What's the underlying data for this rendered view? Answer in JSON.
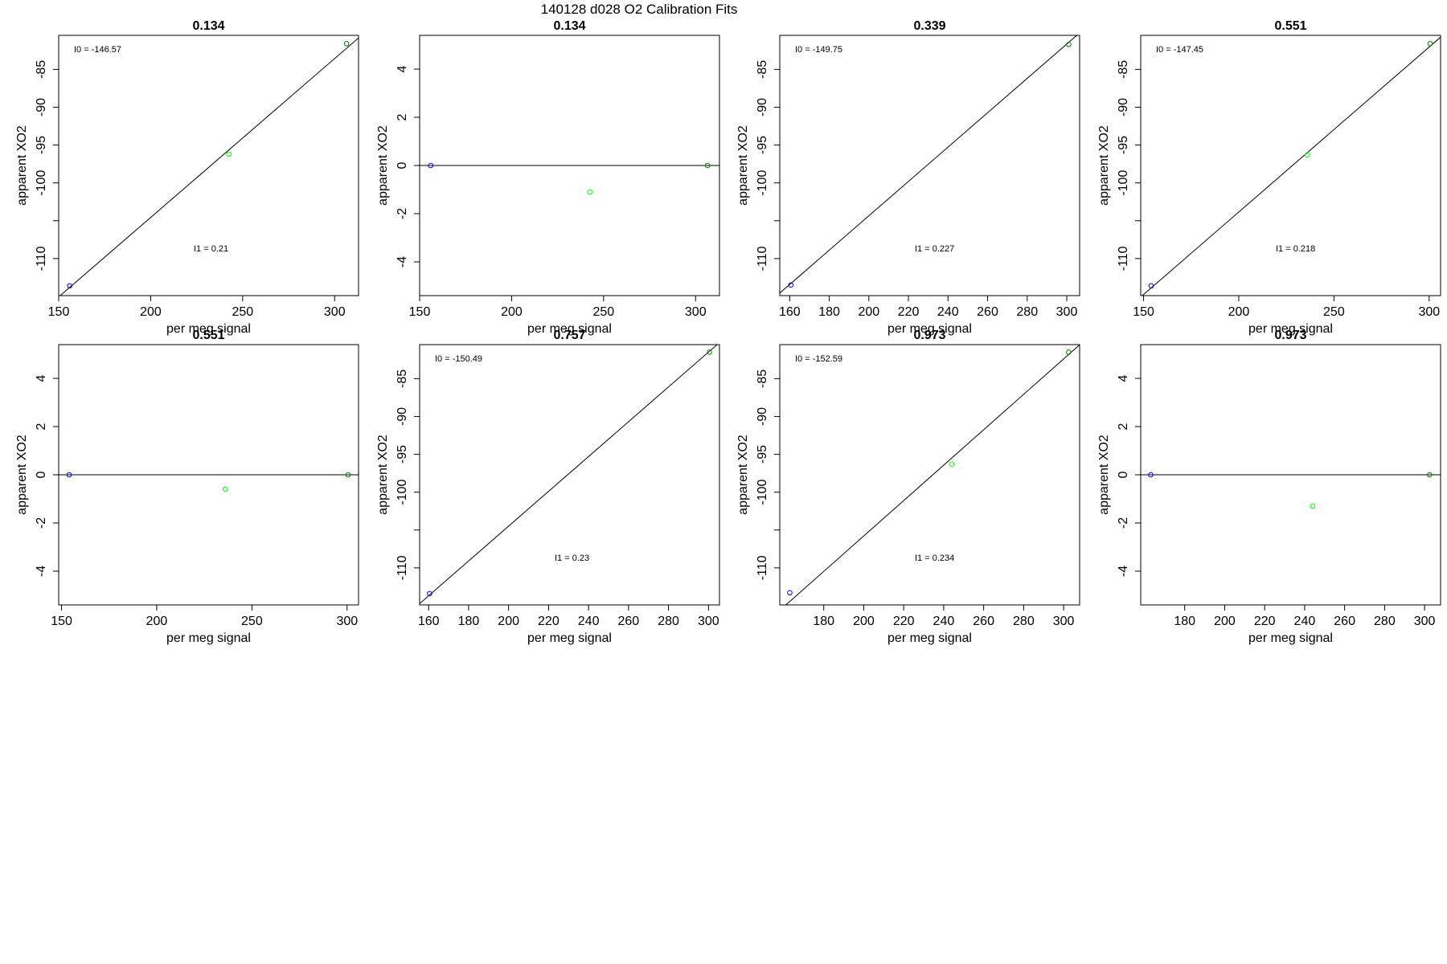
{
  "figure_title": "140128   d028   O2 Calibration Fits",
  "colors": {
    "low_point": "#0000ff",
    "mid_point": "#00ff00",
    "high_point": "#008000",
    "line": "#000000"
  },
  "chart_data": [
    {
      "type": "scatter",
      "title": "0.134",
      "xlabel": "per meg signal",
      "ylabel": "apparent XO2",
      "xlim": [
        150,
        313
      ],
      "ylim": [
        -114.9,
        -80.5
      ],
      "xticks": [
        150,
        200,
        250,
        300
      ],
      "yticks": [
        -85,
        -90,
        -95,
        -100,
        -110
      ],
      "points": [
        {
          "x": 156,
          "y": -113.6,
          "color": "blue"
        },
        {
          "x": 242.5,
          "y": -96.2,
          "color": "green"
        },
        {
          "x": 306.5,
          "y": -81.6,
          "color": "darkgreen"
        }
      ],
      "fit_line": {
        "intercept": -146.57,
        "slope": 0.21
      },
      "annotations": {
        "i0": "I0 =  -146.57",
        "i1": "I1 =  0.21"
      }
    },
    {
      "type": "scatter",
      "title": "0.134",
      "xlabel": "per meg signal",
      "ylabel": "apparent XO2",
      "xlim": [
        150,
        313
      ],
      "ylim": [
        -5.4,
        5.4
      ],
      "xticks": [
        150,
        200,
        250,
        300
      ],
      "yticks": [
        4,
        2,
        0,
        -2,
        -4
      ],
      "points": [
        {
          "x": 156,
          "y": 0,
          "color": "blue"
        },
        {
          "x": 242.5,
          "y": -1.1,
          "color": "green"
        },
        {
          "x": 306.5,
          "y": 0,
          "color": "darkgreen"
        }
      ],
      "fit_line": {
        "intercept": 0,
        "slope": 0
      },
      "annotations": {}
    },
    {
      "type": "scatter",
      "title": "0.339",
      "xlabel": "per meg signal",
      "ylabel": "apparent XO2",
      "xlim": [
        155,
        306.5
      ],
      "ylim": [
        -114.9,
        -80.5
      ],
      "xticks": [
        160,
        180,
        200,
        220,
        240,
        260,
        280,
        300
      ],
      "yticks": [
        -85,
        -90,
        -95,
        -100,
        -110
      ],
      "points": [
        {
          "x": 160.6,
          "y": -113.5,
          "color": "blue"
        },
        {
          "x": 301,
          "y": -81.7,
          "color": "darkgreen"
        }
      ],
      "fit_line": {
        "intercept": -149.75,
        "slope": 0.227
      },
      "annotations": {
        "i0": "I0 =  -149.75",
        "i1": "I1 =  0.227"
      }
    },
    {
      "type": "scatter",
      "title": "0.551",
      "xlabel": "per meg signal",
      "ylabel": "apparent XO2",
      "xlim": [
        148.5,
        306
      ],
      "ylim": [
        -114.9,
        -80.5
      ],
      "xticks": [
        150,
        200,
        250,
        300
      ],
      "yticks": [
        -85,
        -90,
        -95,
        -100,
        -110
      ],
      "points": [
        {
          "x": 154,
          "y": -113.6,
          "color": "blue"
        },
        {
          "x": 236,
          "y": -96.3,
          "color": "green"
        },
        {
          "x": 300.5,
          "y": -81.6,
          "color": "darkgreen"
        }
      ],
      "fit_line": {
        "intercept": -147.45,
        "slope": 0.218
      },
      "annotations": {
        "i0": "I0 =  -147.45",
        "i1": "I1 =  0.218"
      }
    },
    {
      "type": "scatter",
      "title": "0.551",
      "xlabel": "per meg signal",
      "ylabel": "apparent XO2",
      "xlim": [
        148.5,
        306
      ],
      "ylim": [
        -5.4,
        5.4
      ],
      "xticks": [
        150,
        200,
        250,
        300
      ],
      "yticks": [
        4,
        2,
        0,
        -2,
        -4
      ],
      "points": [
        {
          "x": 154,
          "y": 0,
          "color": "blue"
        },
        {
          "x": 236,
          "y": -0.6,
          "color": "green"
        },
        {
          "x": 300.5,
          "y": 0,
          "color": "darkgreen"
        }
      ],
      "fit_line": {
        "intercept": 0,
        "slope": 0
      },
      "annotations": {}
    },
    {
      "type": "scatter",
      "title": "0.757",
      "xlabel": "per meg signal",
      "ylabel": "apparent XO2",
      "xlim": [
        155.5,
        305.5
      ],
      "ylim": [
        -114.9,
        -80.5
      ],
      "xticks": [
        160,
        180,
        200,
        220,
        240,
        260,
        280,
        300
      ],
      "yticks": [
        -85,
        -90,
        -95,
        -100,
        -110
      ],
      "points": [
        {
          "x": 160.5,
          "y": -113.4,
          "color": "blue"
        },
        {
          "x": 300.5,
          "y": -81.5,
          "color": "darkgreen"
        }
      ],
      "fit_line": {
        "intercept": -150.49,
        "slope": 0.23
      },
      "annotations": {
        "i0": "I0 =  -150.49",
        "i1": "I1 =  0.23"
      }
    },
    {
      "type": "scatter",
      "title": "0.973",
      "xlabel": "per meg signal",
      "ylabel": "apparent XO2",
      "xlim": [
        158,
        308
      ],
      "ylim": [
        -114.9,
        -80.5
      ],
      "xticks": [
        180,
        200,
        220,
        240,
        260,
        280,
        300
      ],
      "yticks": [
        -85,
        -90,
        -95,
        -100,
        -110
      ],
      "points": [
        {
          "x": 163,
          "y": -113.3,
          "color": "blue"
        },
        {
          "x": 244,
          "y": -96.3,
          "color": "green"
        },
        {
          "x": 302.5,
          "y": -81.5,
          "color": "darkgreen"
        }
      ],
      "fit_line": {
        "intercept": -152.59,
        "slope": 0.234
      },
      "annotations": {
        "i0": "I0 =  -152.59",
        "i1": "I1 =  0.234"
      }
    },
    {
      "type": "scatter",
      "title": "0.973",
      "xlabel": "per meg signal",
      "ylabel": "apparent XO2",
      "xlim": [
        158,
        308
      ],
      "ylim": [
        -5.4,
        5.4
      ],
      "xticks": [
        180,
        200,
        220,
        240,
        260,
        280,
        300
      ],
      "yticks": [
        4,
        2,
        0,
        -2,
        -4
      ],
      "points": [
        {
          "x": 163,
          "y": 0,
          "color": "blue"
        },
        {
          "x": 244,
          "y": -1.3,
          "color": "green"
        },
        {
          "x": 302.5,
          "y": 0,
          "color": "darkgreen"
        }
      ],
      "fit_line": {
        "intercept": 0,
        "slope": 0
      },
      "annotations": {}
    }
  ]
}
